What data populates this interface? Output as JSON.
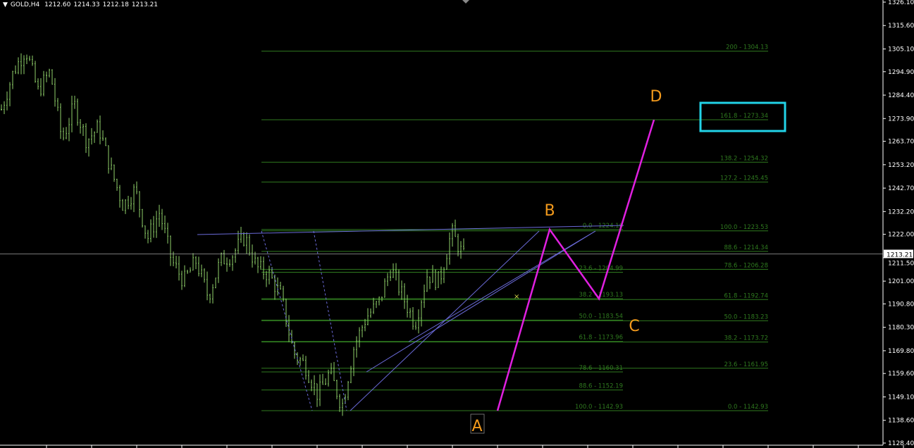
{
  "header": {
    "symbol": "GOLD,H4",
    "open": "1212.60",
    "high": "1214.33",
    "low": "1212.18",
    "close": "1213.21"
  },
  "colors": {
    "background": "#000000",
    "bull_candle": "#8fd06a",
    "fib": "#2f7a1f",
    "fib_text": "#2f7a1f",
    "trendline": "#6a6ad8",
    "abcd": "#e020e0",
    "abcd_labels": "#f39a1c",
    "highlight_box": "#22d3e8",
    "price_line": "#c0c0c0"
  },
  "chart_data": {
    "type": "candlestick",
    "ylim": [
      1128.4,
      1326.1
    ],
    "yticks": [
      "1326.10",
      "1315.60",
      "1305.10",
      "1294.90",
      "1284.40",
      "1273.90",
      "1263.70",
      "1253.20",
      "1242.70",
      "1232.20",
      "1222.00",
      "1211.50",
      "1201.00",
      "1190.80",
      "1180.30",
      "1169.80",
      "1159.60",
      "1149.10",
      "1138.60",
      "1128.40"
    ],
    "current_price": "1213.21",
    "approx_close_path": [
      1278,
      1295,
      1305,
      1286,
      1295,
      1264,
      1280,
      1264,
      1270,
      1251,
      1235,
      1242,
      1220,
      1232,
      1210,
      1201,
      1210,
      1194,
      1210,
      1213,
      1221,
      1207,
      1204,
      1194,
      1169,
      1163,
      1150,
      1160,
      1145,
      1172,
      1185,
      1191,
      1207,
      1194,
      1182,
      1204,
      1201,
      1223,
      1212
    ],
    "fib_retracement": {
      "levels": [
        "0.0 - 1224.16",
        "23.6 - 1204.99",
        "38.2 - 1193.13",
        "50.0 - 1183.54",
        "61.8 - 1173.96",
        "78.6 - 1160.31",
        "88.6 - 1152.19",
        "100.0 - 1142.93"
      ],
      "prices": [
        1224.16,
        1204.99,
        1193.13,
        1183.54,
        1173.96,
        1160.31,
        1152.19,
        1142.93
      ]
    },
    "fib_extension": {
      "levels": [
        "200 - 1304.13",
        "161.8 - 1273.34",
        "138.2 - 1254.32",
        "127.2 - 1245.45",
        "100.0 - 1223.53",
        "88.6 - 1214.34",
        "78.6 - 1206.28",
        "61.8 - 1192.74",
        "50.0 - 1183.23",
        "38.2 - 1173.72",
        "23.6  - 1161.95",
        "0.0 - 1142.93"
      ],
      "prices": [
        1304.13,
        1273.34,
        1254.32,
        1245.45,
        1223.53,
        1214.34,
        1206.28,
        1192.74,
        1183.23,
        1173.72,
        1161.95,
        1142.93
      ]
    },
    "abcd_pattern": {
      "labels": [
        "A",
        "B",
        "C",
        "D"
      ],
      "prices": [
        1142.93,
        1224.16,
        1193.13,
        1273.34
      ]
    },
    "highlighted_level": "161.8 - 1273.34"
  }
}
